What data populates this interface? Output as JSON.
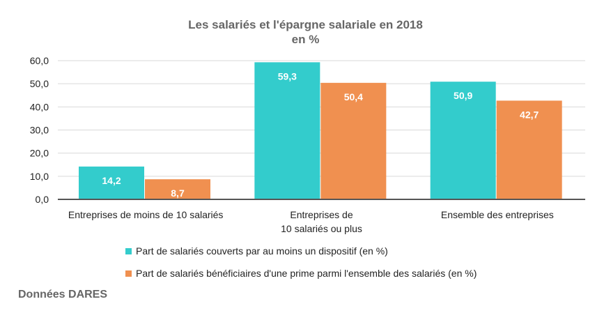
{
  "chart_data": {
    "type": "bar",
    "title": "Les salariés et l'épargne salariale en 2018",
    "subtitle": "en %",
    "categories": [
      [
        "Entreprises de moins de 10 salariés"
      ],
      [
        "Entreprises de",
        "10 salariés ou plus"
      ],
      [
        "Ensemble des entreprises"
      ]
    ],
    "series": [
      {
        "name": "Part de salariés couverts par au moins un dispositif (en %)",
        "values": [
          14.2,
          59.3,
          50.9
        ],
        "labels": [
          "14,2",
          "59,3",
          "50,9"
        ],
        "color": "#33CCCC"
      },
      {
        "name": "Part de salariés bénéficiaires d'une prime parmi l'ensemble des salariés (en %)",
        "values": [
          8.7,
          50.4,
          42.7
        ],
        "labels": [
          "8,7",
          "50,4",
          "42,7"
        ],
        "color": "#F09050"
      }
    ],
    "ylim": [
      0,
      60
    ],
    "yticks": [
      "0,0",
      "10,0",
      "20,0",
      "30,0",
      "40,0",
      "50,0",
      "60,0"
    ],
    "grid": true,
    "legend": "bottom"
  },
  "source": "Données DARES"
}
